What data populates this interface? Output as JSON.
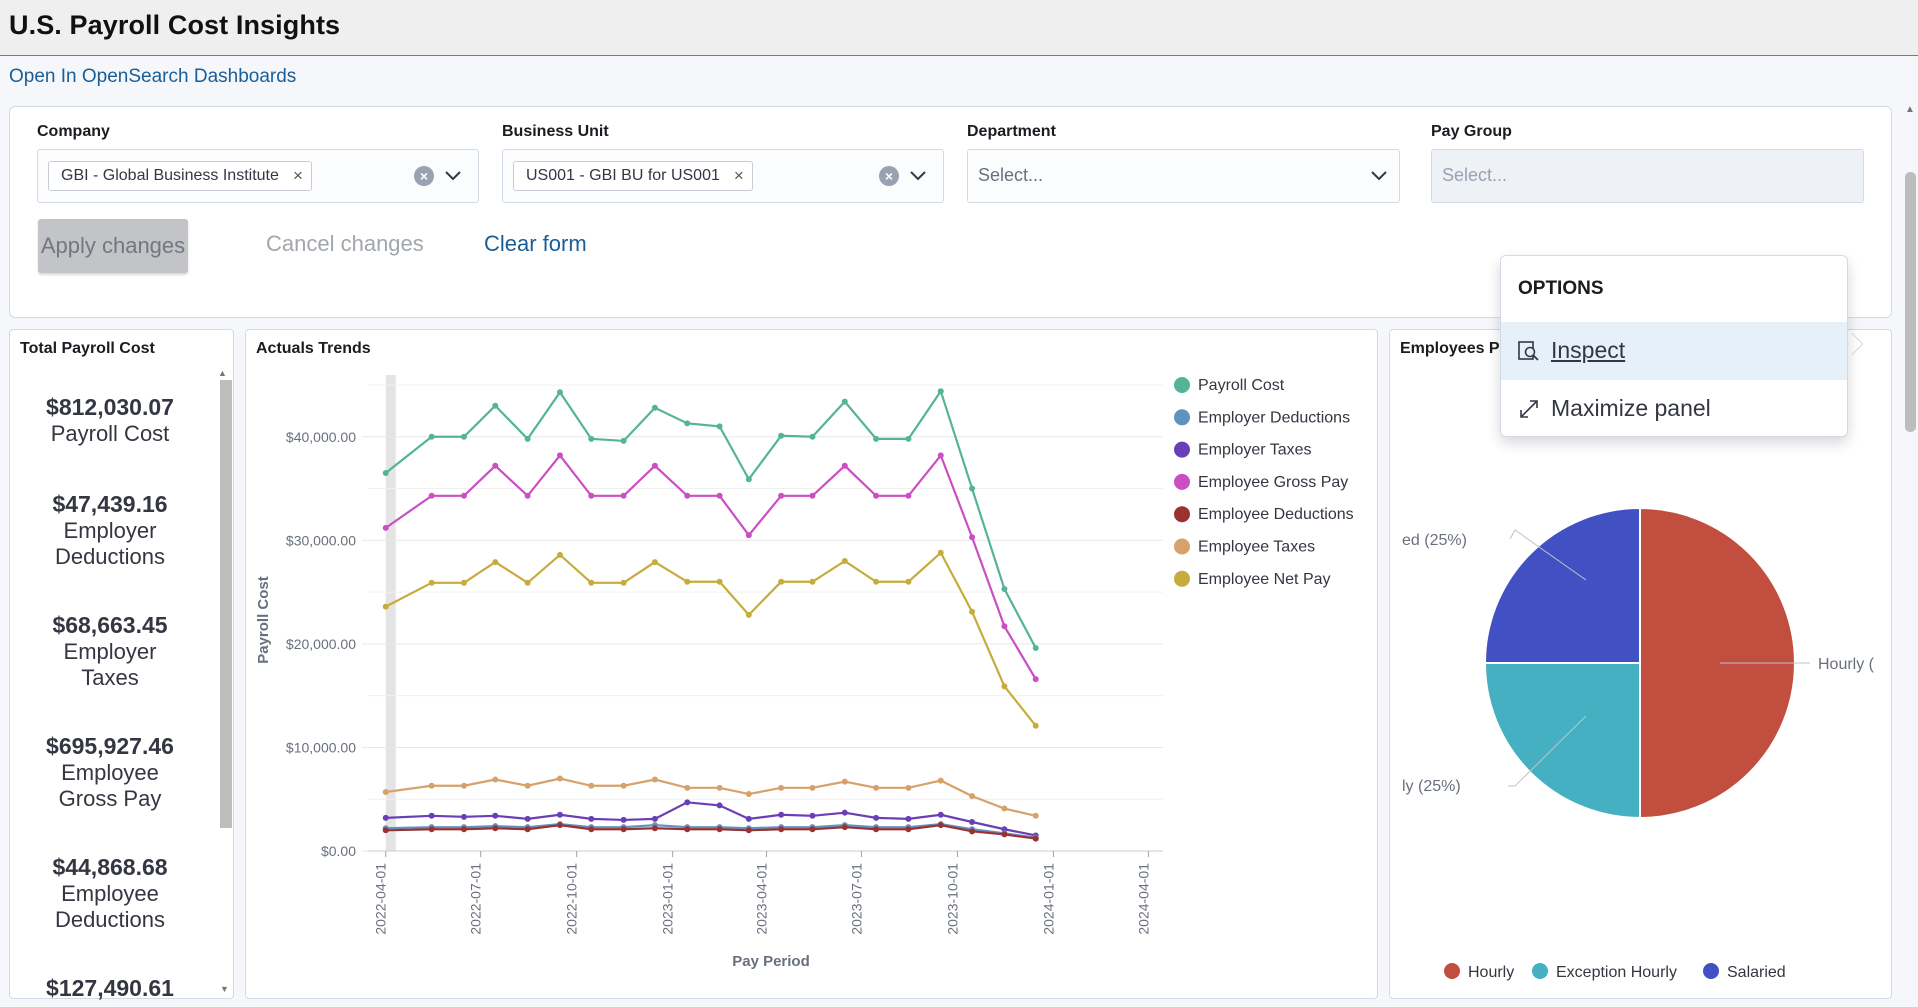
{
  "header": {
    "title": "U.S. Payroll Cost Insights"
  },
  "open_link": "Open In OpenSearch Dashboards",
  "filters": {
    "company": {
      "label": "Company",
      "value": "GBI - Global Business Institute"
    },
    "business_unit": {
      "label": "Business Unit",
      "value": "US001 - GBI BU for US001"
    },
    "department": {
      "label": "Department",
      "placeholder": "Select..."
    },
    "pay_group": {
      "label": "Pay Group",
      "placeholder": "Select..."
    }
  },
  "buttons": {
    "apply": "Apply changes",
    "cancel": "Cancel changes",
    "clear": "Clear form"
  },
  "total_panel": {
    "title": "Total Payroll Cost",
    "metrics": [
      {
        "value": "$812,030.07",
        "label": "Payroll Cost"
      },
      {
        "value": "$47,439.16",
        "label": "Employer Deductions"
      },
      {
        "value": "$68,663.45",
        "label": "Employer Taxes"
      },
      {
        "value": "$695,927.46",
        "label": "Employee Gross Pay"
      },
      {
        "value": "$44,868.68",
        "label": "Employee Deductions"
      },
      {
        "value": "$127,490.61",
        "label": ""
      }
    ]
  },
  "trends_panel": {
    "title": "Actuals Trends"
  },
  "employees_panel": {
    "title": "Employees P"
  },
  "options_menu": {
    "title": "OPTIONS",
    "items": [
      "Inspect",
      "Maximize panel"
    ]
  },
  "colors": {
    "payroll_cost": "#54b399",
    "employer_deductions": "#6092c0",
    "employer_taxes": "#6a3fb5",
    "employee_gross_pay": "#ca4fc4",
    "employee_deductions": "#9b3232",
    "employee_taxes": "#d6a16a",
    "employee_net_pay": "#c6ac3c",
    "hourly": "#c14e3e",
    "exception_hourly": "#45b0c2",
    "salaried": "#4150c2"
  },
  "chart_data": [
    {
      "type": "line",
      "title": "",
      "xlabel": "Pay Period",
      "ylabel": "Payroll Cost",
      "ylim": [
        0,
        45000
      ],
      "yticks": [
        "$0.00",
        "$10,000.00",
        "$20,000.00",
        "$30,000.00",
        "$40,000.00"
      ],
      "ytick_values": [
        0,
        10000,
        20000,
        30000,
        40000
      ],
      "xticks": [
        "2022-04-01",
        "2022-07-01",
        "2022-10-01",
        "2023-01-01",
        "2023-04-01",
        "2023-07-01",
        "2023-10-01",
        "2024-01-01",
        "2024-04-01"
      ],
      "x": [
        "2022-04-01",
        "2022-05-15",
        "2022-06-15",
        "2022-07-15",
        "2022-08-15",
        "2022-09-15",
        "2022-10-15",
        "2022-11-15",
        "2022-12-15",
        "2023-01-15",
        "2023-02-15",
        "2023-03-15",
        "2023-04-15",
        "2023-05-15",
        "2023-06-15",
        "2023-07-15",
        "2023-08-15",
        "2023-09-15",
        "2023-10-15",
        "2023-11-15",
        "2023-12-15"
      ],
      "legend_position": "right",
      "series": [
        {
          "name": "Payroll Cost",
          "color": "#54b399",
          "values": [
            36500,
            40000,
            40000,
            43000,
            39800,
            44300,
            39800,
            39600,
            42800,
            41300,
            41000,
            35900,
            40100,
            40000,
            43400,
            39800,
            39800,
            44400,
            35000,
            25300,
            19600
          ]
        },
        {
          "name": "Employer Deductions",
          "color": "#6092c0",
          "values": [
            2200,
            2300,
            2300,
            2400,
            2300,
            2600,
            2300,
            2300,
            2500,
            2300,
            2300,
            2200,
            2300,
            2300,
            2500,
            2300,
            2300,
            2600,
            2100,
            1700,
            1300
          ]
        },
        {
          "name": "Employer Taxes",
          "color": "#6a3fb5",
          "values": [
            3200,
            3400,
            3300,
            3400,
            3100,
            3500,
            3100,
            3000,
            3100,
            4700,
            4400,
            3100,
            3500,
            3400,
            3700,
            3200,
            3100,
            3500,
            2800,
            2100,
            1500
          ]
        },
        {
          "name": "Employee Gross Pay",
          "color": "#ca4fc4",
          "values": [
            31200,
            34300,
            34300,
            37200,
            34300,
            38200,
            34300,
            34300,
            37200,
            34300,
            34300,
            30500,
            34300,
            34300,
            37200,
            34300,
            34300,
            38200,
            30300,
            21700,
            16600
          ]
        },
        {
          "name": "Employee Deductions",
          "color": "#9b3232",
          "values": [
            2000,
            2100,
            2100,
            2200,
            2100,
            2500,
            2100,
            2100,
            2200,
            2100,
            2100,
            2000,
            2100,
            2100,
            2300,
            2100,
            2100,
            2500,
            1900,
            1600,
            1200
          ]
        },
        {
          "name": "Employee Taxes",
          "color": "#d6a16a",
          "values": [
            5700,
            6300,
            6300,
            6900,
            6300,
            7000,
            6300,
            6300,
            6900,
            6100,
            6100,
            5500,
            6100,
            6100,
            6700,
            6100,
            6100,
            6800,
            5300,
            4100,
            3400
          ]
        },
        {
          "name": "Employee Net Pay",
          "color": "#c6ac3c",
          "values": [
            23600,
            25900,
            25900,
            27900,
            25900,
            28600,
            25900,
            25900,
            27900,
            26000,
            26000,
            22800,
            26000,
            26000,
            28000,
            26000,
            26000,
            28800,
            23100,
            15900,
            12100
          ]
        }
      ]
    },
    {
      "type": "pie",
      "title": "",
      "slices": [
        {
          "name": "Hourly",
          "value": 50,
          "color": "#c14e3e"
        },
        {
          "name": "Exception Hourly",
          "value": 25,
          "color": "#45b0c2"
        },
        {
          "name": "Salaried",
          "value": 25,
          "color": "#4150c2"
        }
      ],
      "labels": {
        "hourly": "Hourly (",
        "exception_hourly": "ly (25%)",
        "salaried": "ed (25%)"
      },
      "legend_position": "bottom"
    }
  ]
}
